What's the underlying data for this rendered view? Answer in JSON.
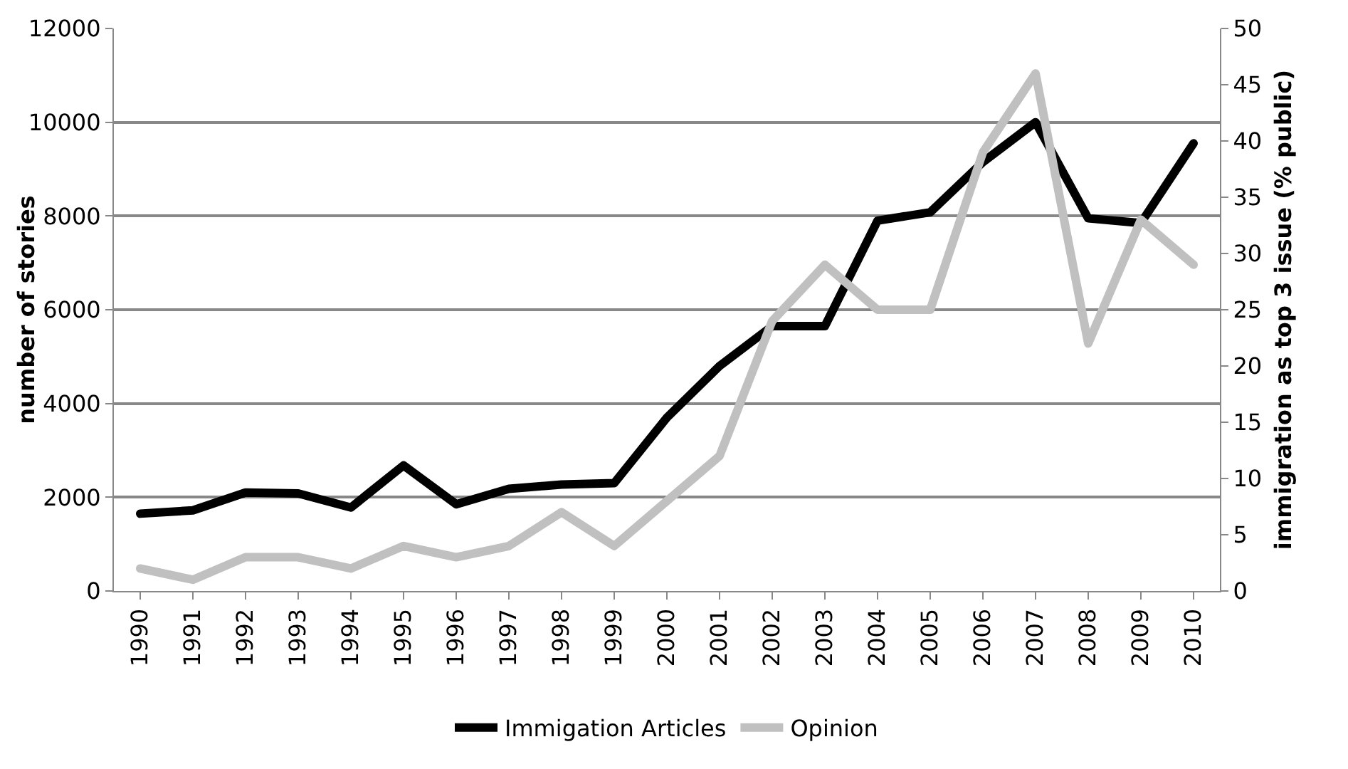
{
  "chart_data": {
    "type": "line",
    "categories": [
      "1990",
      "1991",
      "1992",
      "1993",
      "1994",
      "1995",
      "1996",
      "1997",
      "1998",
      "1999",
      "2000",
      "2001",
      "2002",
      "2003",
      "2004",
      "2005",
      "2006",
      "2007",
      "2008",
      "2009",
      "2010"
    ],
    "ylabel": "number of stories",
    "y2label": "immigration as top 3 issue (% public)",
    "ylim": [
      0,
      12000
    ],
    "yticks": [
      0,
      2000,
      4000,
      6000,
      8000,
      10000,
      12000
    ],
    "y2lim": [
      0,
      50
    ],
    "y2ticks": [
      0,
      5,
      10,
      15,
      20,
      25,
      30,
      35,
      40,
      45,
      50
    ],
    "grid": "y",
    "legend": "bottom",
    "marker": "none",
    "line_style": "solid",
    "series": [
      {
        "name": "Immigation Articles",
        "color": "#000000",
        "values": [
          1650,
          1720,
          2100,
          2080,
          1780,
          2680,
          1850,
          2180,
          2270,
          2300,
          3700,
          4800,
          5650,
          5650,
          7900,
          8080,
          9150,
          10000,
          7950,
          7850,
          9550
        ]
      },
      {
        "name": "Opinion",
        "color": "#c0c0c0",
        "axis": "y2",
        "values": [
          2,
          1,
          3,
          3,
          2,
          4,
          3,
          4,
          7,
          4,
          8,
          12,
          24,
          29,
          25,
          25,
          39,
          46,
          22,
          33,
          29
        ]
      }
    ]
  }
}
